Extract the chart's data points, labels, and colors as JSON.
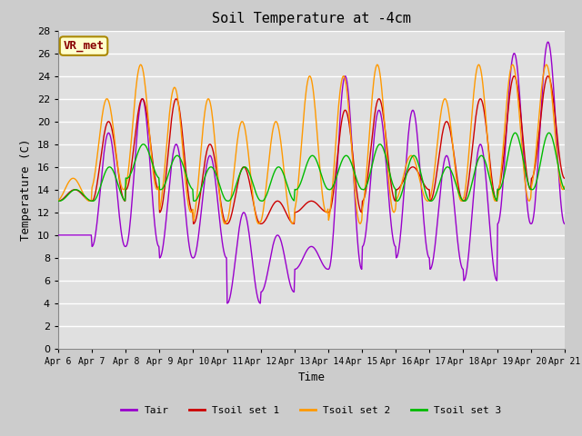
{
  "title": "Soil Temperature at -4cm",
  "xlabel": "Time",
  "ylabel": "Temperature (C)",
  "ylim": [
    0,
    28
  ],
  "colors": {
    "Tair": "#9900cc",
    "Tsoil1": "#cc0000",
    "Tsoil2": "#ff9900",
    "Tsoil3": "#00bb00"
  },
  "legend_label_box": "VR_met",
  "x_tick_labels": [
    "Apr 6",
    "Apr 7",
    "Apr 8",
    "Apr 9",
    "Apr 10",
    "Apr 11",
    "Apr 12",
    "Apr 13",
    "Apr 14",
    "Apr 15",
    "Apr 16",
    "Apr 17",
    "Apr 18",
    "Apr 19",
    "Apr 20",
    "Apr 21"
  ],
  "legend_entries": [
    "Tair",
    "Tsoil set 1",
    "Tsoil set 2",
    "Tsoil set 3"
  ],
  "background_color": "#cccccc",
  "plot_bg_color": "#e0e0e0",
  "grid_color": "#ffffff"
}
